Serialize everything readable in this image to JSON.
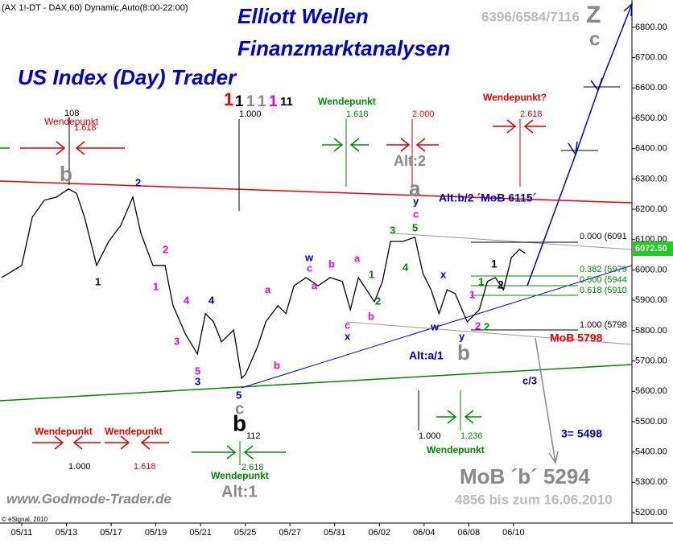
{
  "chart_data": {
    "type": "line",
    "annotations": [
      "(AX 1!-DT - DAX,60) Dynamic,Auto(8:00-22:00)",
      "Elliott Wellen",
      "Finanzmarktanalysen",
      "US Index (Day) Trader",
      "6396/6584/7116",
      "Z",
      "c",
      "108",
      "Wendepunkt",
      "1.618",
      "1",
      "1",
      "1",
      "1",
      "1",
      "11",
      "1.000",
      "Wendepunkt",
      "1.618",
      "2.000",
      "Wendepunkt?",
      "2.618",
      "Alt:2",
      "a",
      "y",
      "c",
      "Alt:b/2 ´MoB 6115´",
      "b",
      "0.000 (6091",
      "6072.50",
      "0.382 (5979",
      "0.500 (5944",
      "0.618 (5910",
      "1.000 (5798",
      "MoB 5798",
      "2",
      "1",
      "2",
      "1",
      "4",
      "4",
      "3",
      "5",
      "3",
      "a",
      "b",
      "w",
      "c",
      "b",
      "a",
      "a",
      "1",
      "2",
      "c",
      "x",
      "b",
      "3",
      "5",
      "4",
      "x",
      "w",
      "1",
      "y",
      "2",
      "2",
      "1",
      "1",
      "2",
      "b",
      "Alt:a/1",
      "5",
      "c",
      "b",
      "112",
      "c/3",
      "3= 5498",
      "1.000",
      "1.236",
      "Wendepunkt",
      "Wendepunkt",
      "Wendepunkt",
      "1.000",
      "1.618",
      "2.618",
      "Wendepunkt",
      "Alt:1",
      "MoB ´b´ 5294",
      "4856 bis zum 16.06.2010",
      "www.Godmode-Trader.de",
      "© eSignal, 2010"
    ],
    "x": [
      -0.9,
      0,
      0.47,
      1.01,
      1.55,
      2.09,
      2.45,
      2.81,
      3.35,
      3.89,
      4.43,
      4.97,
      5.33,
      5.87,
      6.41,
      6.77,
      7.32,
      7.86,
      8.22,
      8.58,
      8.94,
      9.48,
      9.84,
      10.02,
      10.56,
      10.92,
      11.46,
      11.82,
      12.18,
      12.72,
      13.26,
      13.8,
      14.34,
      14.7,
      15.06,
      15.42,
      15.78,
      16.14,
      16.5,
      17.05,
      17.59,
      17.95,
      18.31,
      18.67,
      19.03,
      19.39,
      19.93,
      20.47,
      20.83,
      21.19,
      21.55,
      21.91,
      22.27,
      22.52
    ],
    "series": [
      {
        "color": "#000000",
        "values": [
          5975,
          6015,
          6174,
          6230,
          6240,
          6267,
          6253,
          6174,
          6015,
          6094,
          6147,
          6240,
          6121,
          6015,
          6015,
          5882,
          5789,
          5723,
          5856,
          5829,
          5763,
          5802,
          5643,
          5657,
          5749,
          5829,
          5882,
          5856,
          5948,
          5975,
          5948,
          5975,
          5962,
          5869,
          5975,
          5935,
          5895,
          5962,
          6094,
          6094,
          6108,
          5988,
          5935,
          5856,
          5935,
          5922,
          5829,
          5869,
          5962,
          5975,
          5935,
          6041,
          6068,
          6055
        ]
      }
    ],
    "xlim": [
      -0.973,
      27.3
    ],
    "xticks": [
      {
        "value": 0,
        "label": "05/11"
      },
      {
        "value": 2,
        "label": "05/13"
      },
      {
        "value": 4,
        "label": "05/17"
      },
      {
        "value": 6,
        "label": "05/19"
      },
      {
        "value": 8,
        "label": "05/21"
      },
      {
        "value": 10,
        "label": "05/25"
      },
      {
        "value": 12,
        "label": "05/27"
      },
      {
        "value": 14,
        "label": "05/31"
      },
      {
        "value": 16,
        "label": "06/02"
      },
      {
        "value": 18,
        "label": "06/04"
      },
      {
        "value": 20,
        "label": "06/08"
      },
      {
        "value": 22,
        "label": "06/10"
      }
    ],
    "ylim": [
      5139,
      6890
    ],
    "yticks": [
      {
        "value": 5200,
        "label": "5200.00"
      },
      {
        "value": 5300,
        "label": "5300.00"
      },
      {
        "value": 5400,
        "label": "5400.00"
      },
      {
        "value": 5500,
        "label": "5500.00"
      },
      {
        "value": 5600,
        "label": "5600.00"
      },
      {
        "value": 5700,
        "label": "5700.00"
      },
      {
        "value": 5800,
        "label": "5800.00"
      },
      {
        "value": 5900,
        "label": "5900.00"
      },
      {
        "value": 6000,
        "label": "6000.00"
      },
      {
        "value": 6100,
        "label": "6100.00"
      },
      {
        "value": 6200,
        "label": "6200.00"
      },
      {
        "value": 6300,
        "label": "6300.00"
      },
      {
        "value": 6400,
        "label": "6400.00"
      },
      {
        "value": 6500,
        "label": "6500.00"
      },
      {
        "value": 6600,
        "label": "6600.00"
      },
      {
        "value": 6700,
        "label": "6700.00"
      },
      {
        "value": 6800,
        "label": "6800.00"
      }
    ]
  }
}
